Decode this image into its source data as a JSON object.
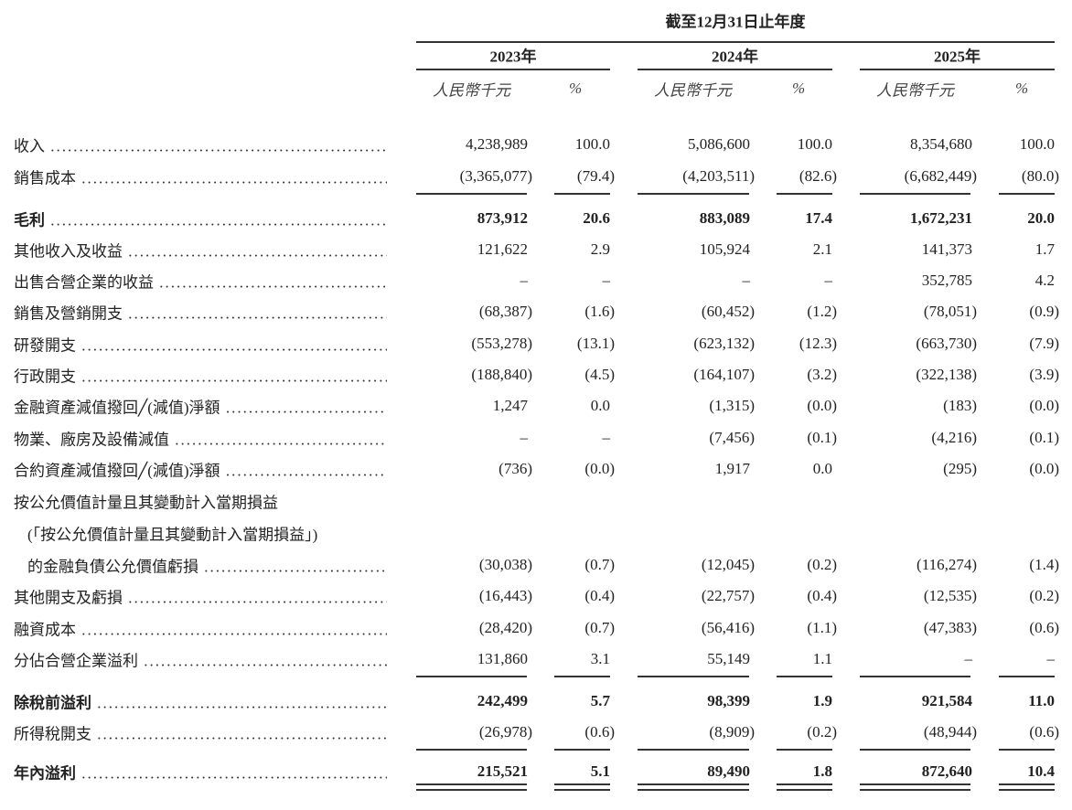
{
  "header": {
    "period_title": "截至12月31日止年度",
    "years": [
      "2023年",
      "2024年",
      "2025年"
    ],
    "units": [
      "人民幣千元",
      "%",
      "人民幣千元",
      "%",
      "人民幣千元",
      "%"
    ]
  },
  "rows": [
    {
      "label": "收入",
      "values": [
        "4,238,989",
        "100.0",
        "5,086,600",
        "100.0",
        "8,354,680",
        "100.0"
      ]
    },
    {
      "label": "銷售成本",
      "values": [
        "(3,365,077)",
        "(79.4)",
        "(4,203,511)",
        "(82.6)",
        "(6,682,449)",
        "(80.0)"
      ]
    },
    {
      "label": "毛利",
      "bold": true,
      "values": [
        "873,912",
        "20.6",
        "883,089",
        "17.4",
        "1,672,231",
        "20.0"
      ]
    },
    {
      "label": "其他收入及收益",
      "values": [
        "121,622",
        "2.9",
        "105,924",
        "2.1",
        "141,373",
        "1.7"
      ]
    },
    {
      "label": "出售合營企業的收益",
      "values": [
        "–",
        "–",
        "–",
        "–",
        "352,785",
        "4.2"
      ]
    },
    {
      "label": "銷售及營銷開支",
      "values": [
        "(68,387)",
        "(1.6)",
        "(60,452)",
        "(1.2)",
        "(78,051)",
        "(0.9)"
      ]
    },
    {
      "label": "研發開支",
      "values": [
        "(553,278)",
        "(13.1)",
        "(623,132)",
        "(12.3)",
        "(663,730)",
        "(7.9)"
      ]
    },
    {
      "label": "行政開支",
      "values": [
        "(188,840)",
        "(4.5)",
        "(164,107)",
        "(3.2)",
        "(322,138)",
        "(3.9)"
      ]
    },
    {
      "label": "金融資產減值撥回╱(減值)淨額",
      "values": [
        "1,247",
        "0.0",
        "(1,315)",
        "(0.0)",
        "(183)",
        "(0.0)"
      ]
    },
    {
      "label": "物業、廠房及設備減值",
      "values": [
        "–",
        "–",
        "(7,456)",
        "(0.1)",
        "(4,216)",
        "(0.1)"
      ]
    },
    {
      "label": "合約資產減值撥回╱(減值)淨額",
      "values": [
        "(736)",
        "(0.0)",
        "1,917",
        "0.0",
        "(295)",
        "(0.0)"
      ]
    },
    {
      "label": "按公允價值計量且其變動計入當期損益",
      "nodots": true,
      "values": []
    },
    {
      "label": "(「按公允價值計量且其變動計入當期損益」)",
      "nodots": true,
      "indent": true,
      "values": []
    },
    {
      "label": "的金融負債公允價值虧損",
      "indent": true,
      "values": [
        "(30,038)",
        "(0.7)",
        "(12,045)",
        "(0.2)",
        "(116,274)",
        "(1.4)"
      ]
    },
    {
      "label": "其他開支及虧損",
      "values": [
        "(16,443)",
        "(0.4)",
        "(22,757)",
        "(0.4)",
        "(12,535)",
        "(0.2)"
      ]
    },
    {
      "label": "融資成本",
      "values": [
        "(28,420)",
        "(0.7)",
        "(56,416)",
        "(1.1)",
        "(47,383)",
        "(0.6)"
      ]
    },
    {
      "label": "分佔合營企業溢利",
      "values": [
        "131,860",
        "3.1",
        "55,149",
        "1.1",
        "–",
        "–"
      ]
    },
    {
      "label": "除稅前溢利",
      "bold": true,
      "values": [
        "242,499",
        "5.7",
        "98,399",
        "1.9",
        "921,584",
        "11.0"
      ]
    },
    {
      "label": "所得稅開支",
      "values": [
        "(26,978)",
        "(0.6)",
        "(8,909)",
        "(0.2)",
        "(48,944)",
        "(0.6)"
      ]
    },
    {
      "label": "年內溢利",
      "bold": true,
      "values": [
        "215,521",
        "5.1",
        "89,490",
        "1.8",
        "872,640",
        "10.4"
      ]
    }
  ]
}
